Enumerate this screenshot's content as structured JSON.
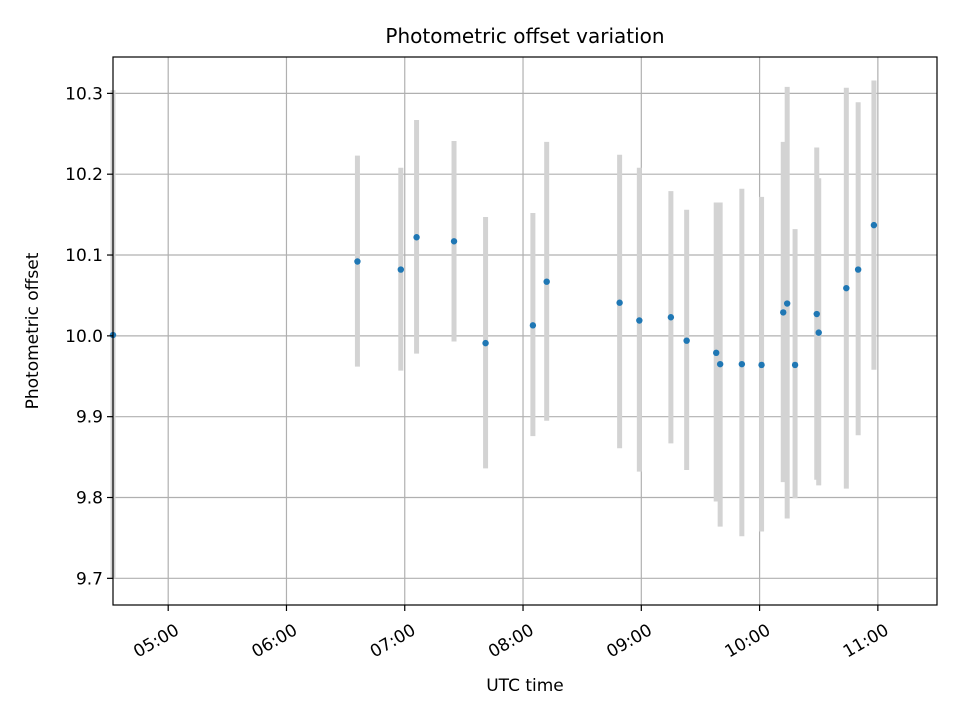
{
  "chart_data": {
    "type": "scatter",
    "title": "Photometric offset variation",
    "xlabel": "UTC time",
    "ylabel": "Photometric offset",
    "xlim": [
      "04:32",
      "11:30"
    ],
    "ylim": [
      9.667,
      10.345
    ],
    "x_ticks": [
      "05:00",
      "06:00",
      "07:00",
      "08:00",
      "09:00",
      "10:00",
      "11:00"
    ],
    "y_ticks": [
      "9.7",
      "9.8",
      "9.9",
      "10.0",
      "10.1",
      "10.2",
      "10.3"
    ],
    "grid": true,
    "colors": {
      "point": "#1f77b4",
      "errorbar": "#d3d3d3",
      "grid": "#b0b0b0"
    },
    "series": [
      {
        "points": [
          {
            "x": "04:32",
            "y": 10.001,
            "err_low": 9.7,
            "err_high": 10.304
          },
          {
            "x": "06:36",
            "y": 10.092,
            "err_low": 9.962,
            "err_high": 10.223
          },
          {
            "x": "06:58",
            "y": 10.082,
            "err_low": 9.957,
            "err_high": 10.208
          },
          {
            "x": "07:06",
            "y": 10.122,
            "err_low": 9.978,
            "err_high": 10.267
          },
          {
            "x": "07:25",
            "y": 10.117,
            "err_low": 9.993,
            "err_high": 10.241
          },
          {
            "x": "07:41",
            "y": 9.991,
            "err_low": 9.836,
            "err_high": 10.147
          },
          {
            "x": "08:05",
            "y": 10.013,
            "err_low": 9.876,
            "err_high": 10.152
          },
          {
            "x": "08:12",
            "y": 10.067,
            "err_low": 9.895,
            "err_high": 10.24
          },
          {
            "x": "08:49",
            "y": 10.041,
            "err_low": 9.861,
            "err_high": 10.224
          },
          {
            "x": "08:59",
            "y": 10.019,
            "err_low": 9.832,
            "err_high": 10.208
          },
          {
            "x": "09:15",
            "y": 10.023,
            "err_low": 9.867,
            "err_high": 10.179
          },
          {
            "x": "09:23",
            "y": 9.994,
            "err_low": 9.834,
            "err_high": 10.156
          },
          {
            "x": "09:38",
            "y": 9.979,
            "err_low": 9.795,
            "err_high": 10.165
          },
          {
            "x": "09:40",
            "y": 9.965,
            "err_low": 9.764,
            "err_high": 10.165
          },
          {
            "x": "09:51",
            "y": 9.965,
            "err_low": 9.752,
            "err_high": 10.182
          },
          {
            "x": "10:01",
            "y": 9.964,
            "err_low": 9.758,
            "err_high": 10.172
          },
          {
            "x": "10:12",
            "y": 10.029,
            "err_low": 9.819,
            "err_high": 10.24
          },
          {
            "x": "10:14",
            "y": 10.04,
            "err_low": 9.774,
            "err_high": 10.308
          },
          {
            "x": "10:18",
            "y": 9.964,
            "err_low": 9.799,
            "err_high": 10.132
          },
          {
            "x": "10:29",
            "y": 10.027,
            "err_low": 9.822,
            "err_high": 10.233
          },
          {
            "x": "10:30",
            "y": 10.004,
            "err_low": 9.815,
            "err_high": 10.195
          },
          {
            "x": "10:44",
            "y": 10.059,
            "err_low": 9.811,
            "err_high": 10.307
          },
          {
            "x": "10:50",
            "y": 10.082,
            "err_low": 9.877,
            "err_high": 10.289
          },
          {
            "x": "10:58",
            "y": 10.137,
            "err_low": 9.958,
            "err_high": 10.316
          }
        ]
      }
    ]
  }
}
